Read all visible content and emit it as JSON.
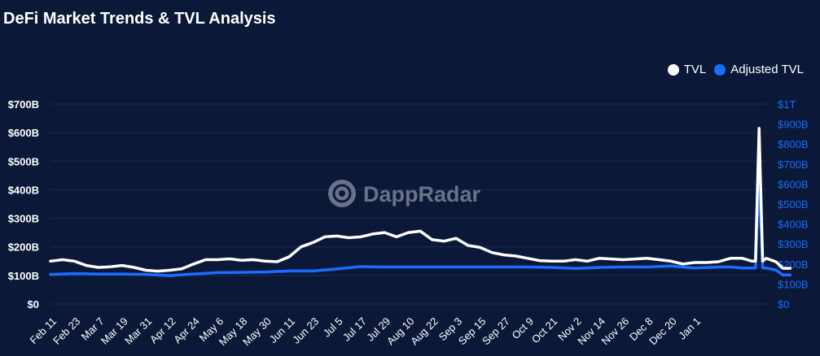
{
  "title": "DeFi Market Trends & TVL Analysis",
  "watermark": "DappRadar",
  "legend": [
    {
      "label": "TVL",
      "color": "#ffffff"
    },
    {
      "label": "Adjusted TVL",
      "color": "#1a6dff"
    }
  ],
  "colors": {
    "background": "#0b1838",
    "grid": "#1c2b52",
    "tvl": "#ffffff",
    "adjusted": "#1a6dff"
  },
  "chart_data": {
    "type": "line",
    "title": "DeFi Market Trends & TVL Analysis",
    "xlabel": "",
    "ylabel": "",
    "categories": [
      "Feb 11",
      "Feb 23",
      "Mar 7",
      "Mar 19",
      "Mar 31",
      "Apr 12",
      "Apr 24",
      "May 6",
      "May 18",
      "May 30",
      "Jun 11",
      "Jun 23",
      "Jul 5",
      "Jul 17",
      "Jul 29",
      "Aug 10",
      "Aug 22",
      "Sep 3",
      "Sep 15",
      "Sep 27",
      "Oct 9",
      "Oct 21",
      "Nov 2",
      "Nov 14",
      "Nov 26",
      "Dec 8",
      "Dec 20",
      "Jan 1"
    ],
    "y_left": {
      "ticks": [
        "$0",
        "$100B",
        "$200B",
        "$300B",
        "$400B",
        "$500B",
        "$600B",
        "$700B"
      ],
      "range": [
        0,
        700
      ]
    },
    "y_right": {
      "ticks": [
        "$0",
        "$100B",
        "$200B",
        "$300B",
        "$400B",
        "$500B",
        "$600B",
        "$700B",
        "$800B",
        "$900B",
        "$1T"
      ],
      "range": [
        0,
        1000
      ]
    },
    "grid": true,
    "legend_position": "top-right",
    "series": [
      {
        "name": "TVL",
        "axis": "left",
        "x": [
          0,
          0.5,
          1,
          1.5,
          2,
          2.5,
          3,
          3.5,
          4,
          4.5,
          5,
          5.5,
          6,
          6.5,
          7,
          7.5,
          8,
          8.5,
          9,
          9.5,
          10,
          10.5,
          11,
          11.5,
          12,
          12.5,
          13,
          13.5,
          14,
          14.5,
          15,
          15.5,
          16,
          16.5,
          17,
          17.5,
          18,
          18.5,
          19,
          19.5,
          20,
          20.5,
          21,
          21.5,
          22,
          22.5,
          23,
          24,
          25,
          26,
          26.5,
          27,
          27.5,
          28,
          28.5,
          29,
          29.4,
          29.55,
          29.7,
          29.85,
          30,
          30.4,
          30.7,
          31
        ],
        "values": [
          150,
          155,
          150,
          135,
          128,
          130,
          135,
          128,
          118,
          115,
          118,
          123,
          140,
          155,
          155,
          158,
          153,
          155,
          150,
          148,
          165,
          200,
          215,
          235,
          238,
          232,
          235,
          245,
          250,
          235,
          250,
          255,
          225,
          220,
          230,
          205,
          198,
          180,
          172,
          168,
          160,
          152,
          150,
          150,
          155,
          150,
          160,
          155,
          160,
          150,
          140,
          145,
          145,
          148,
          160,
          160,
          150,
          150,
          615,
          150,
          160,
          148,
          125,
          125
        ]
      },
      {
        "name": "Adjusted TVL",
        "axis": "right",
        "x": [
          0,
          1,
          2,
          3,
          4,
          5,
          6,
          7,
          8,
          9,
          10,
          11,
          12,
          13,
          14,
          15,
          16,
          17,
          18,
          19,
          20,
          21,
          22,
          23,
          24,
          25,
          26,
          26.5,
          27,
          28,
          28.5,
          29,
          29.4,
          29.55,
          29.7,
          29.85,
          30,
          30.4,
          30.7,
          31
        ],
        "values": [
          148,
          152,
          150,
          150,
          148,
          142,
          150,
          157,
          158,
          160,
          165,
          165,
          175,
          187,
          185,
          185,
          185,
          185,
          185,
          185,
          185,
          183,
          178,
          183,
          185,
          185,
          190,
          185,
          180,
          185,
          185,
          180,
          180,
          180,
          645,
          180,
          180,
          170,
          145,
          145
        ]
      }
    ]
  }
}
